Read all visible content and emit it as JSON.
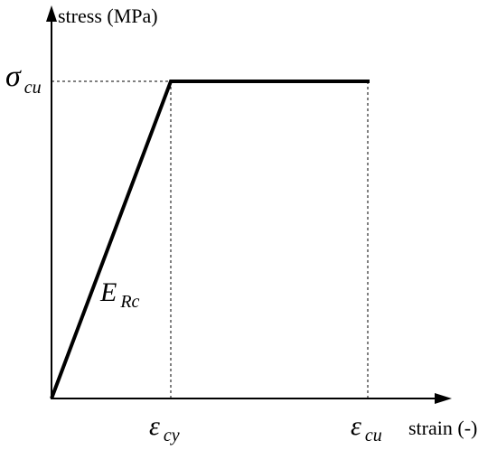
{
  "diagram": {
    "type": "stress-strain-model",
    "y_axis_label": "stress (MPa)",
    "x_axis_label": "strain (-)",
    "stress_level": {
      "symbol": "σ",
      "subscript": "cu"
    },
    "strain_points": [
      {
        "symbol": "ε",
        "subscript": "cy"
      },
      {
        "symbol": "ε",
        "subscript": "cu"
      }
    ],
    "slope_label": {
      "symbol": "E",
      "subscript": "Rc"
    },
    "colors": {
      "curve": "#000000",
      "axes": "#000000",
      "guides": "#000000",
      "background": "#ffffff"
    }
  }
}
